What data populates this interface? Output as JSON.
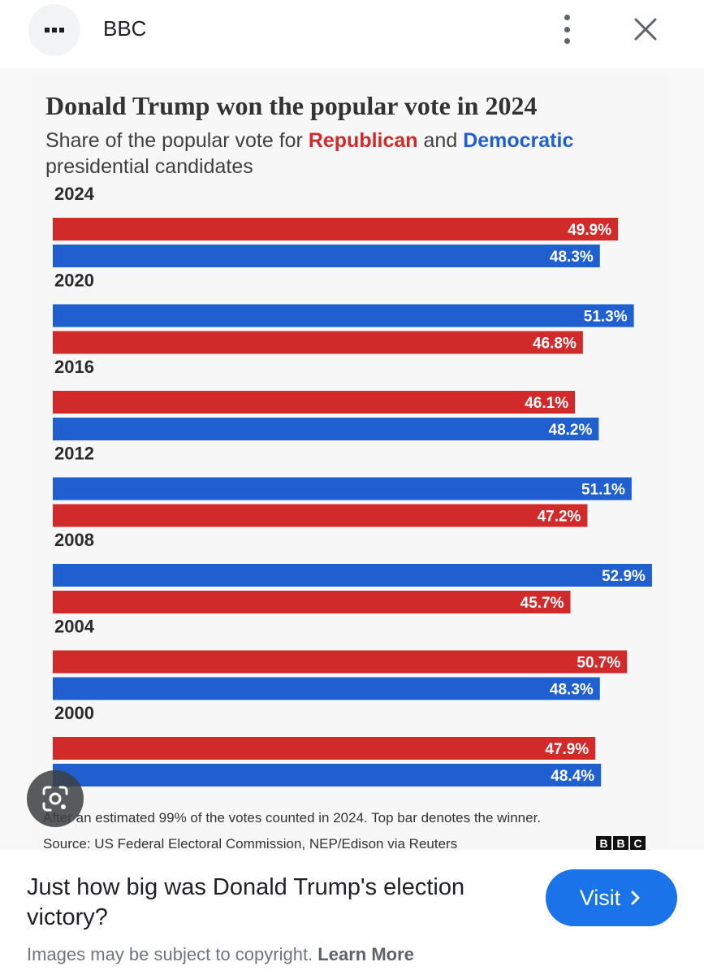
{
  "header": {
    "site_name": "BBC",
    "site_icon": "bbc-favicon",
    "menu_icon": "more-vert-icon",
    "close_icon": "close-icon"
  },
  "infographic": {
    "title": "Donald Trump won the popular vote in 2024",
    "subtitle_prefix": "Share of the popular vote for ",
    "subtitle_rep": "Republican",
    "subtitle_and": " and ",
    "subtitle_dem": "Democratic",
    "subtitle_suffix": " presidential candidates",
    "footnote": "After an estimated 99% of the votes counted in 2024. Top bar denotes the winner.",
    "source": "Source: US Federal Electoral Commission, NEP/Edison via Reuters",
    "logo_letters": [
      "B",
      "B",
      "C"
    ]
  },
  "chart_data": {
    "type": "bar",
    "orientation": "horizontal",
    "title": "Donald Trump won the popular vote in 2024",
    "colors": {
      "Republican": "#d12a2a",
      "Democratic": "#1f5fd0"
    },
    "groups": [
      {
        "year": "2024",
        "bars": [
          {
            "party": "Republican",
            "value": 49.9,
            "label": "49.9%"
          },
          {
            "party": "Democratic",
            "value": 48.3,
            "label": "48.3%"
          }
        ]
      },
      {
        "year": "2020",
        "bars": [
          {
            "party": "Democratic",
            "value": 51.3,
            "label": "51.3%"
          },
          {
            "party": "Republican",
            "value": 46.8,
            "label": "46.8%"
          }
        ]
      },
      {
        "year": "2016",
        "bars": [
          {
            "party": "Republican",
            "value": 46.1,
            "label": "46.1%"
          },
          {
            "party": "Democratic",
            "value": 48.2,
            "label": "48.2%"
          }
        ]
      },
      {
        "year": "2012",
        "bars": [
          {
            "party": "Democratic",
            "value": 51.1,
            "label": "51.1%"
          },
          {
            "party": "Republican",
            "value": 47.2,
            "label": "47.2%"
          }
        ]
      },
      {
        "year": "2008",
        "bars": [
          {
            "party": "Democratic",
            "value": 52.9,
            "label": "52.9%"
          },
          {
            "party": "Republican",
            "value": 45.7,
            "label": "45.7%"
          }
        ]
      },
      {
        "year": "2004",
        "bars": [
          {
            "party": "Republican",
            "value": 50.7,
            "label": "50.7%"
          },
          {
            "party": "Democratic",
            "value": 48.3,
            "label": "48.3%"
          }
        ]
      },
      {
        "year": "2000",
        "bars": [
          {
            "party": "Republican",
            "value": 47.9,
            "label": "47.9%"
          },
          {
            "party": "Democratic",
            "value": 48.4,
            "label": "48.4%"
          }
        ]
      }
    ]
  },
  "lens_icon": "google-lens-icon",
  "footer": {
    "headline": "Just how big was Donald Trump's election victory?",
    "visit_label": "Visit",
    "visit_icon": "chevron-right-icon",
    "copyright": "Images may be subject to copyright.",
    "learn_more": "Learn More"
  }
}
